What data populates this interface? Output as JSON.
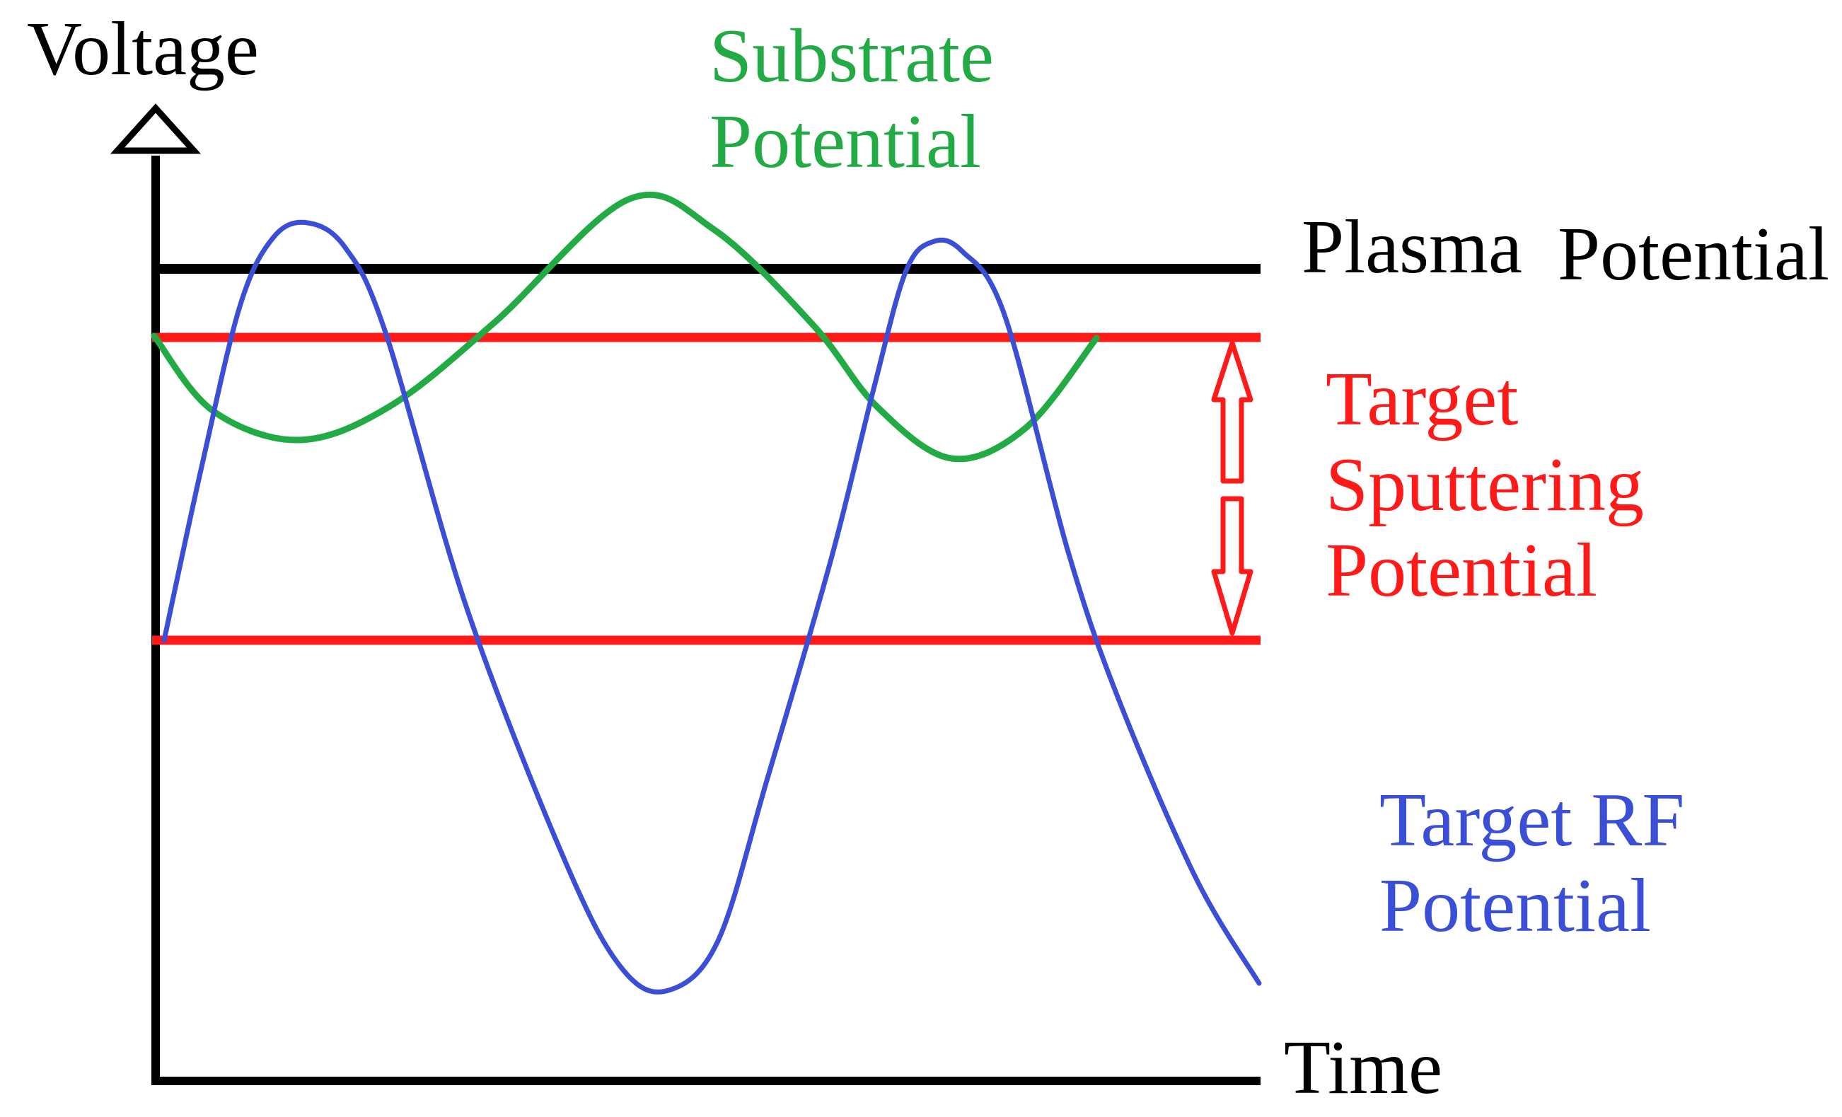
{
  "axes": {
    "y_label": "Voltage",
    "x_label": "Time"
  },
  "labels": {
    "substrate": {
      "line1": "Substrate",
      "line2": "Potential"
    },
    "plasma": {
      "word1": "Plasma",
      "word2": "Potential"
    },
    "target_sputtering": {
      "line1": "Target",
      "line2": "Sputtering",
      "line3": "Potential"
    },
    "target_rf": {
      "line1": "Target RF",
      "line2": "Potential"
    }
  },
  "colors": {
    "axis": "#000000",
    "plasma": "#000000",
    "sputtering": "#ff1a1a",
    "substrate": "#22aa44",
    "rf": "#3b4fd6"
  }
}
